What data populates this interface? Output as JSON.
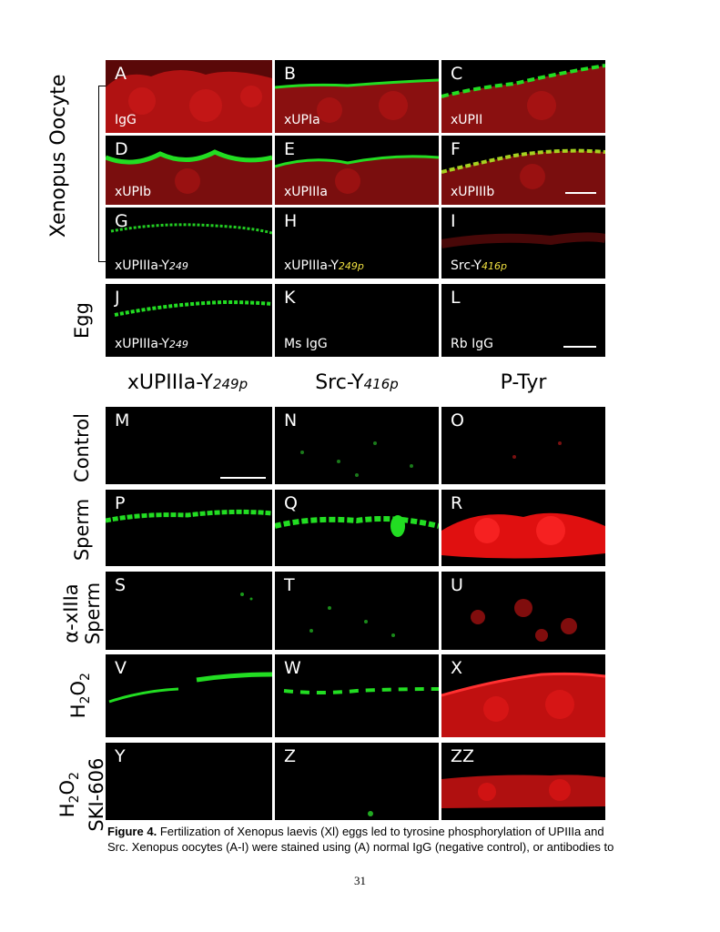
{
  "top_grid": {
    "group_label_oocyte": "Xenopus Oocyte",
    "group_label_egg": "Egg",
    "panels": [
      {
        "letter": "A",
        "label": "IgG",
        "label_sub": ""
      },
      {
        "letter": "B",
        "label": "xUPIa",
        "label_sub": ""
      },
      {
        "letter": "C",
        "label": "xUPII",
        "label_sub": ""
      },
      {
        "letter": "D",
        "label": "xUPIb",
        "label_sub": ""
      },
      {
        "letter": "E",
        "label": "xUPIIIa",
        "label_sub": ""
      },
      {
        "letter": "F",
        "label": "xUPIIIb",
        "label_sub": ""
      },
      {
        "letter": "G",
        "label": "xUPIIIa-Y",
        "label_sub": "249"
      },
      {
        "letter": "H",
        "label": "xUPIIIa-Y",
        "label_sub": "249p"
      },
      {
        "letter": "I",
        "label": "Src-Y",
        "label_sub": "416p"
      },
      {
        "letter": "J",
        "label": "xUPIIIa-Y",
        "label_sub": "249"
      },
      {
        "letter": "K",
        "label": "Ms IgG",
        "label_sub": ""
      },
      {
        "letter": "L",
        "label": "Rb IgG",
        "label_sub": ""
      }
    ]
  },
  "bottom_grid": {
    "column_headers": [
      {
        "main": "xUPIIIa-Y",
        "sub": "249p"
      },
      {
        "main": "Src-Y",
        "sub": "416p"
      },
      {
        "main": "P-Tyr",
        "sub": ""
      }
    ],
    "row_labels": {
      "control": "Control",
      "sperm": "Sperm",
      "axiiia_line1": "α-xIIIa",
      "axiiia_line2": "Sperm",
      "h2o2": "H2O2",
      "h2o2ski_line1": "H2O2",
      "h2o2ski_line2": "SKI-606"
    },
    "panels": [
      {
        "letter": "M"
      },
      {
        "letter": "N"
      },
      {
        "letter": "O"
      },
      {
        "letter": "P"
      },
      {
        "letter": "Q"
      },
      {
        "letter": "R"
      },
      {
        "letter": "S"
      },
      {
        "letter": "T"
      },
      {
        "letter": "U"
      },
      {
        "letter": "V"
      },
      {
        "letter": "W"
      },
      {
        "letter": "X"
      },
      {
        "letter": "Y"
      },
      {
        "letter": "Z"
      },
      {
        "letter": "ZZ"
      }
    ]
  },
  "caption": {
    "figure_label": "Figure 4.",
    "line1": "Fertilization of Xenopus laevis (Xl) eggs led to tyrosine phosphorylation of UPIIIa  and",
    "line2": "Src. Xenopus oocytes (A-I) were stained using (A) normal IgG (negative control), or antibodies to"
  },
  "page_number": "31",
  "colors": {
    "green": "#22dd22",
    "red": "#e01010",
    "background": "#000000"
  }
}
